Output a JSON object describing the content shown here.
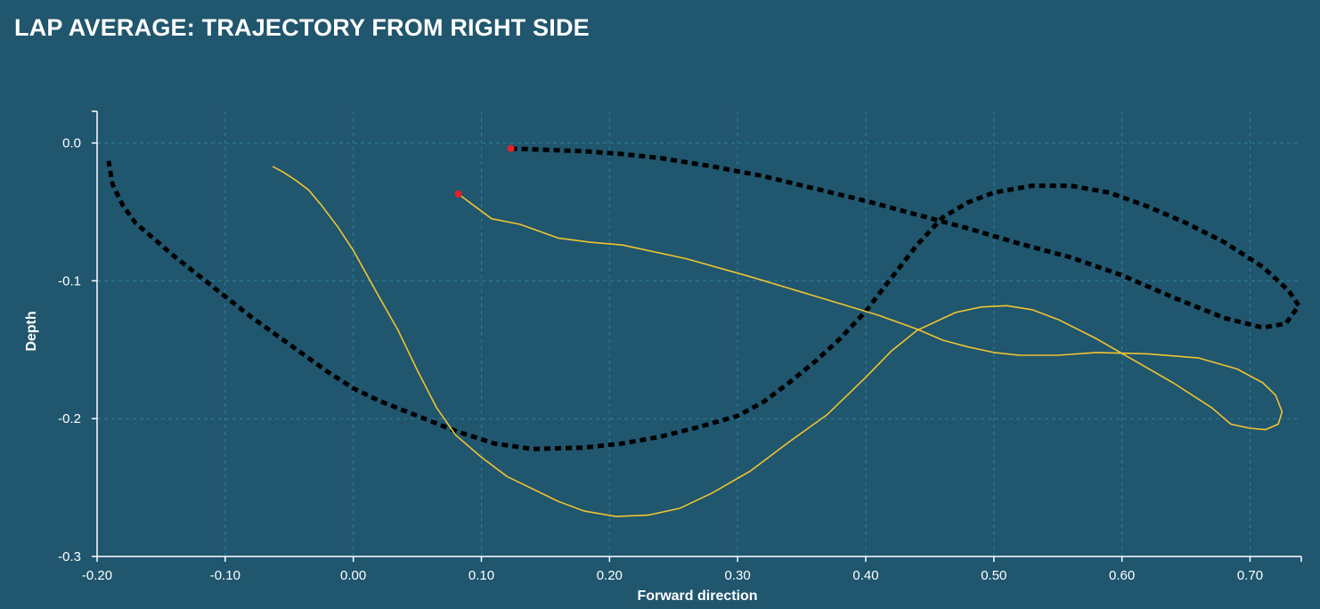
{
  "chart_data": {
    "type": "line",
    "title": "LAP AVERAGE: TRAJECTORY FROM RIGHT SIDE",
    "xlabel": "Forward direction",
    "ylabel": "Depth",
    "xlim": [
      -0.2,
      0.74
    ],
    "ylim": [
      -0.3,
      0.023
    ],
    "x_ticks": [
      -0.2,
      -0.1,
      0.0,
      0.1,
      0.2,
      0.3,
      0.4,
      0.5,
      0.6,
      0.7
    ],
    "x_tick_labels": [
      "-0.20",
      "-0.10",
      "0.00",
      "0.10",
      "0.20",
      "0.30",
      "0.40",
      "0.50",
      "0.60",
      "0.70"
    ],
    "y_ticks": [
      0.0,
      -0.1,
      -0.2,
      -0.3
    ],
    "y_tick_labels": [
      "0.0",
      "-0.1",
      "-0.2",
      "-0.3"
    ],
    "grid": true,
    "colors": {
      "background": "#20566e",
      "grid": "#2f7fa0",
      "dotted_series": "#000000",
      "solid_series": "#f0c430",
      "start_marker": "#e8202a"
    },
    "series": [
      {
        "style": "dotted",
        "color": "#000000",
        "points": [
          [
            0.123,
            -0.004
          ],
          [
            0.15,
            -0.005
          ],
          [
            0.18,
            -0.006
          ],
          [
            0.21,
            -0.008
          ],
          [
            0.24,
            -0.011
          ],
          [
            0.28,
            -0.017
          ],
          [
            0.32,
            -0.024
          ],
          [
            0.36,
            -0.033
          ],
          [
            0.4,
            -0.042
          ],
          [
            0.44,
            -0.052
          ],
          [
            0.48,
            -0.062
          ],
          [
            0.52,
            -0.073
          ],
          [
            0.56,
            -0.083
          ],
          [
            0.6,
            -0.096
          ],
          [
            0.64,
            -0.112
          ],
          [
            0.68,
            -0.127
          ],
          [
            0.71,
            -0.134
          ],
          [
            0.728,
            -0.131
          ],
          [
            0.738,
            -0.118
          ],
          [
            0.73,
            -0.107
          ],
          [
            0.71,
            -0.09
          ],
          [
            0.68,
            -0.072
          ],
          [
            0.65,
            -0.058
          ],
          [
            0.62,
            -0.046
          ],
          [
            0.59,
            -0.036
          ],
          [
            0.56,
            -0.031
          ],
          [
            0.53,
            -0.031
          ],
          [
            0.5,
            -0.036
          ],
          [
            0.48,
            -0.043
          ],
          [
            0.46,
            -0.054
          ],
          [
            0.44,
            -0.074
          ],
          [
            0.42,
            -0.098
          ],
          [
            0.4,
            -0.122
          ],
          [
            0.38,
            -0.142
          ],
          [
            0.36,
            -0.159
          ],
          [
            0.34,
            -0.174
          ],
          [
            0.32,
            -0.188
          ],
          [
            0.3,
            -0.198
          ],
          [
            0.27,
            -0.206
          ],
          [
            0.24,
            -0.213
          ],
          [
            0.21,
            -0.218
          ],
          [
            0.18,
            -0.221
          ],
          [
            0.14,
            -0.222
          ],
          [
            0.11,
            -0.218
          ],
          [
            0.08,
            -0.209
          ],
          [
            0.05,
            -0.198
          ],
          [
            0.02,
            -0.187
          ],
          [
            0.0,
            -0.178
          ],
          [
            -0.02,
            -0.166
          ],
          [
            -0.05,
            -0.146
          ],
          [
            -0.08,
            -0.126
          ],
          [
            -0.11,
            -0.104
          ],
          [
            -0.14,
            -0.082
          ],
          [
            -0.17,
            -0.058
          ],
          [
            -0.18,
            -0.045
          ],
          [
            -0.188,
            -0.03
          ],
          [
            -0.191,
            -0.013
          ]
        ]
      },
      {
        "style": "solid",
        "color": "#f0c430",
        "points": [
          [
            0.082,
            -0.037
          ],
          [
            0.095,
            -0.046
          ],
          [
            0.108,
            -0.055
          ],
          [
            0.13,
            -0.059
          ],
          [
            0.16,
            -0.069
          ],
          [
            0.185,
            -0.072
          ],
          [
            0.21,
            -0.074
          ],
          [
            0.26,
            -0.084
          ],
          [
            0.31,
            -0.097
          ],
          [
            0.36,
            -0.111
          ],
          [
            0.41,
            -0.125
          ],
          [
            0.44,
            -0.135
          ],
          [
            0.46,
            -0.143
          ],
          [
            0.48,
            -0.148
          ],
          [
            0.5,
            -0.152
          ],
          [
            0.52,
            -0.154
          ],
          [
            0.55,
            -0.154
          ],
          [
            0.58,
            -0.152
          ],
          [
            0.62,
            -0.153
          ],
          [
            0.66,
            -0.156
          ],
          [
            0.69,
            -0.164
          ],
          [
            0.71,
            -0.174
          ],
          [
            0.72,
            -0.183
          ],
          [
            0.725,
            -0.195
          ],
          [
            0.722,
            -0.204
          ],
          [
            0.712,
            -0.208
          ],
          [
            0.7,
            -0.207
          ],
          [
            0.685,
            -0.204
          ],
          [
            0.67,
            -0.192
          ],
          [
            0.64,
            -0.174
          ],
          [
            0.61,
            -0.158
          ],
          [
            0.58,
            -0.142
          ],
          [
            0.55,
            -0.128
          ],
          [
            0.53,
            -0.121
          ],
          [
            0.51,
            -0.118
          ],
          [
            0.49,
            -0.119
          ],
          [
            0.47,
            -0.123
          ],
          [
            0.44,
            -0.136
          ],
          [
            0.42,
            -0.151
          ],
          [
            0.4,
            -0.17
          ],
          [
            0.37,
            -0.197
          ],
          [
            0.34,
            -0.217
          ],
          [
            0.31,
            -0.238
          ],
          [
            0.28,
            -0.254
          ],
          [
            0.255,
            -0.265
          ],
          [
            0.23,
            -0.27
          ],
          [
            0.205,
            -0.271
          ],
          [
            0.18,
            -0.267
          ],
          [
            0.16,
            -0.26
          ],
          [
            0.12,
            -0.242
          ],
          [
            0.1,
            -0.228
          ],
          [
            0.08,
            -0.212
          ],
          [
            0.065,
            -0.192
          ],
          [
            0.05,
            -0.165
          ],
          [
            0.035,
            -0.136
          ],
          [
            0.018,
            -0.108
          ],
          [
            0.0,
            -0.078
          ],
          [
            -0.012,
            -0.061
          ],
          [
            -0.025,
            -0.045
          ],
          [
            -0.035,
            -0.034
          ],
          [
            -0.045,
            -0.027
          ],
          [
            -0.055,
            -0.021
          ],
          [
            -0.063,
            -0.017
          ]
        ]
      }
    ],
    "start_markers": [
      {
        "x": 0.123,
        "y": -0.004
      },
      {
        "x": 0.082,
        "y": -0.037
      }
    ]
  }
}
